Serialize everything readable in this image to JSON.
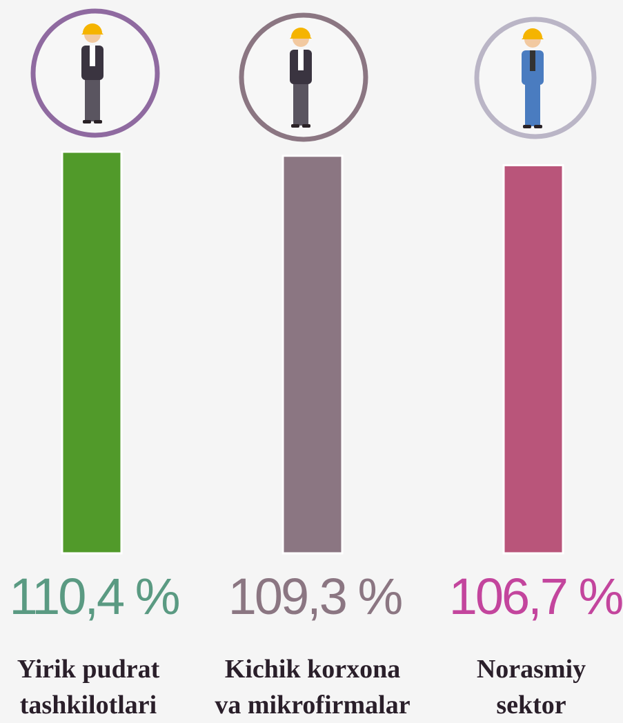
{
  "chart_data": {
    "type": "bar",
    "categories": [
      "Yirik pudrat\ntashkilotlari",
      "Kichik korxona\nva mikrofirmalar",
      "Norasmiy\nsektor"
    ],
    "values": [
      110.4,
      109.3,
      106.7
    ],
    "value_labels": [
      "110,4 %",
      "109,3 %",
      "106,7 %"
    ],
    "colors": [
      "#519a2a",
      "#8b7682",
      "#b9557a"
    ],
    "label_colors": [
      "#5a9a82",
      "#8b7682",
      "#c3459d"
    ],
    "icon_colors": [
      "#8f6aa0",
      "#8b7682",
      "#bab5c6"
    ]
  }
}
